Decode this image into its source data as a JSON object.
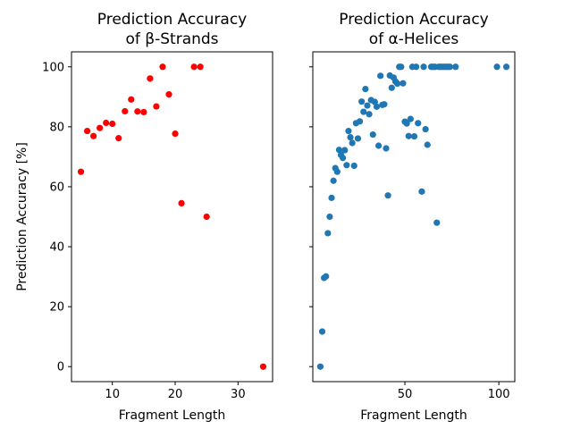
{
  "chart_data": [
    {
      "type": "scatter",
      "title_lines": [
        "Prediction Accuracy",
        "of β-Strands"
      ],
      "xlabel": "Fragment Length",
      "ylabel": "Prediction Accuracy [%]",
      "xlim": [
        3.5,
        35.5
      ],
      "ylim": [
        -5,
        105
      ],
      "xticks": [
        10,
        20,
        30
      ],
      "yticks": [
        0,
        20,
        40,
        60,
        80,
        100
      ],
      "marker_color": "#ff0000",
      "points": [
        {
          "x": 5,
          "y": 65
        },
        {
          "x": 6,
          "y": 78.6
        },
        {
          "x": 7,
          "y": 76.9
        },
        {
          "x": 8,
          "y": 79.6
        },
        {
          "x": 9,
          "y": 81.3
        },
        {
          "x": 10,
          "y": 81
        },
        {
          "x": 11,
          "y": 76.2
        },
        {
          "x": 12,
          "y": 85.2
        },
        {
          "x": 13,
          "y": 89.1
        },
        {
          "x": 14,
          "y": 85.1
        },
        {
          "x": 15,
          "y": 84.9
        },
        {
          "x": 16,
          "y": 96.1
        },
        {
          "x": 17,
          "y": 86.8
        },
        {
          "x": 18,
          "y": 100
        },
        {
          "x": 19,
          "y": 90.8
        },
        {
          "x": 20,
          "y": 77.7
        },
        {
          "x": 21,
          "y": 54.5
        },
        {
          "x": 23,
          "y": 100
        },
        {
          "x": 24,
          "y": 100
        },
        {
          "x": 25,
          "y": 50
        },
        {
          "x": 34,
          "y": 0
        }
      ]
    },
    {
      "type": "scatter",
      "title_lines": [
        "Prediction Accuracy",
        "of α-Helices"
      ],
      "xlabel": "Fragment Length",
      "ylabel": "",
      "xlim": [
        1,
        108.5
      ],
      "ylim": [
        -5,
        105
      ],
      "xticks": [
        50,
        100
      ],
      "yticks": [
        0,
        20,
        40,
        60,
        80,
        100
      ],
      "ytick_labels_visible": false,
      "marker_color": "#1f77b4",
      "points": [
        {
          "x": 5,
          "y": 0
        },
        {
          "x": 6,
          "y": 11.7
        },
        {
          "x": 7,
          "y": 29.6
        },
        {
          "x": 8,
          "y": 30.1
        },
        {
          "x": 9,
          "y": 44.5
        },
        {
          "x": 10,
          "y": 50
        },
        {
          "x": 11,
          "y": 56.3
        },
        {
          "x": 12,
          "y": 62
        },
        {
          "x": 13,
          "y": 66.2
        },
        {
          "x": 14,
          "y": 65
        },
        {
          "x": 15,
          "y": 72.3
        },
        {
          "x": 16,
          "y": 70.6
        },
        {
          "x": 17,
          "y": 69.6
        },
        {
          "x": 18,
          "y": 72.2
        },
        {
          "x": 19,
          "y": 67.2
        },
        {
          "x": 20,
          "y": 78.6
        },
        {
          "x": 21,
          "y": 76.5
        },
        {
          "x": 22,
          "y": 74.6
        },
        {
          "x": 23,
          "y": 67
        },
        {
          "x": 24,
          "y": 81.2
        },
        {
          "x": 25,
          "y": 76.1
        },
        {
          "x": 26,
          "y": 81.8
        },
        {
          "x": 27,
          "y": 88.4
        },
        {
          "x": 28,
          "y": 85
        },
        {
          "x": 29,
          "y": 92.6
        },
        {
          "x": 30,
          "y": 87.1
        },
        {
          "x": 31,
          "y": 84.2
        },
        {
          "x": 32,
          "y": 88.9
        },
        {
          "x": 33,
          "y": 77.4
        },
        {
          "x": 34,
          "y": 88.3
        },
        {
          "x": 35,
          "y": 86.7
        },
        {
          "x": 36,
          "y": 73.7
        },
        {
          "x": 37,
          "y": 97
        },
        {
          "x": 38,
          "y": 87.3
        },
        {
          "x": 39,
          "y": 87.5
        },
        {
          "x": 40,
          "y": 72.8
        },
        {
          "x": 41,
          "y": 57.1
        },
        {
          "x": 42,
          "y": 97.1
        },
        {
          "x": 43,
          "y": 93
        },
        {
          "x": 44,
          "y": 96.4
        },
        {
          "x": 45,
          "y": 95.1
        },
        {
          "x": 46,
          "y": 94.4
        },
        {
          "x": 47,
          "y": 100
        },
        {
          "x": 48,
          "y": 100
        },
        {
          "x": 49,
          "y": 94.5
        },
        {
          "x": 50,
          "y": 81.7
        },
        {
          "x": 51,
          "y": 81.1
        },
        {
          "x": 52,
          "y": 76.9
        },
        {
          "x": 53,
          "y": 82.6
        },
        {
          "x": 54,
          "y": 100
        },
        {
          "x": 55,
          "y": 76.8
        },
        {
          "x": 56,
          "y": 100
        },
        {
          "x": 57,
          "y": 81.2
        },
        {
          "x": 59,
          "y": 58.4
        },
        {
          "x": 60,
          "y": 100
        },
        {
          "x": 61,
          "y": 79.2
        },
        {
          "x": 62,
          "y": 74
        },
        {
          "x": 64,
          "y": 100
        },
        {
          "x": 65,
          "y": 100
        },
        {
          "x": 66,
          "y": 100
        },
        {
          "x": 67,
          "y": 48
        },
        {
          "x": 68,
          "y": 100
        },
        {
          "x": 69,
          "y": 100
        },
        {
          "x": 70,
          "y": 100
        },
        {
          "x": 71,
          "y": 100
        },
        {
          "x": 72,
          "y": 100
        },
        {
          "x": 73,
          "y": 100
        },
        {
          "x": 74,
          "y": 100
        },
        {
          "x": 77,
          "y": 100
        },
        {
          "x": 99,
          "y": 100
        },
        {
          "x": 104,
          "y": 100
        }
      ]
    }
  ]
}
